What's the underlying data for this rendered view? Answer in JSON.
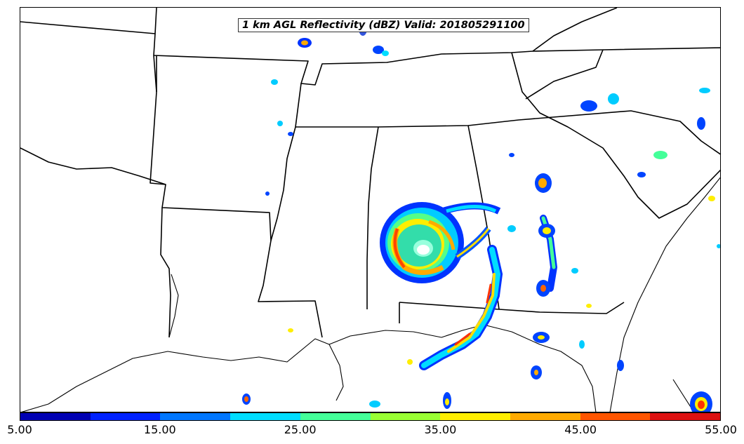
{
  "map": {
    "title": "1 km AGL Reflectivity (dBZ) Valid: 201805291100",
    "variable": "reflectivity",
    "units": "dBZ",
    "valid_time": "201805291100",
    "region": "southeastern-united-states",
    "features": [
      "state-boundaries",
      "coastline",
      "tropical-cyclone-circulation",
      "scattered-convective-cells"
    ]
  },
  "colorbar": {
    "tick_labels": [
      "5.00",
      "15.00",
      "25.00",
      "35.00",
      "45.00",
      "55.00"
    ],
    "colors": [
      "#0000b3",
      "#0022ff",
      "#0077ff",
      "#00ddff",
      "#44ff99",
      "#99ff33",
      "#ffee00",
      "#ffaa00",
      "#ff5500",
      "#dd1111"
    ]
  }
}
